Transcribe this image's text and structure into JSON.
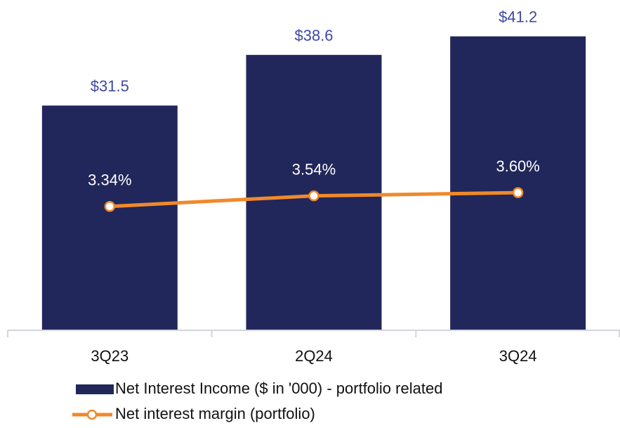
{
  "chart_data": {
    "type": "bar_line",
    "categories": [
      "3Q23",
      "2Q24",
      "3Q24"
    ],
    "series": [
      {
        "name": "Net Interest Income ($ in '000) - portfolio related",
        "type": "bar",
        "color": "#21275a",
        "values": [
          31.5,
          38.6,
          41.2
        ],
        "value_labels": [
          "$31.5",
          "$38.6",
          "$41.2"
        ]
      },
      {
        "name": "Net interest margin (portfolio)",
        "type": "line",
        "axis": "y2",
        "color": "#f0892a",
        "values": [
          3.34,
          3.54,
          3.6
        ],
        "value_labels": [
          "3.34%",
          "3.54%",
          "3.60%"
        ]
      }
    ],
    "ylim": [
      0,
      46
    ],
    "y2lim": [
      1,
      7.2
    ],
    "legend": "bottom"
  }
}
